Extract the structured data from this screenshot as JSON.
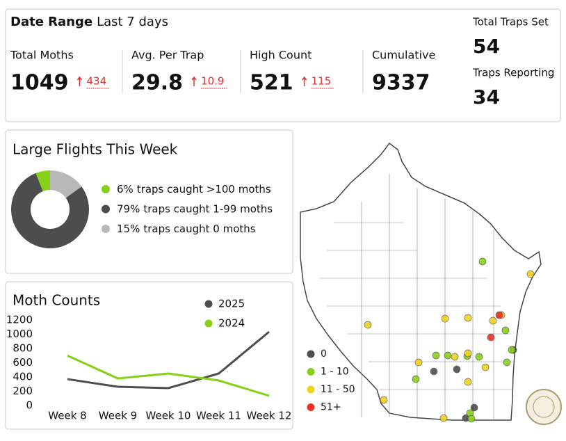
{
  "header": {
    "label": "Date Range",
    "value": "Last 7 days"
  },
  "kpis": [
    {
      "label": "Total Moths",
      "value": 1049,
      "change": 434
    },
    {
      "label": "Avg. Per Trap",
      "value": 29.8,
      "change": 10.9
    },
    {
      "label": "High Count",
      "value": 521,
      "change": 115
    },
    {
      "label": "Cumulative",
      "value": 9337
    }
  ],
  "totals": [
    {
      "label": "Total Traps Set",
      "value": 54
    },
    {
      "label": "Traps Reporting",
      "value": 34
    }
  ],
  "chart_data": [
    {
      "type": "pie",
      "title": "Large Flights This Week",
      "categories": [
        "traps caught >100 moths",
        "traps caught 1-99 moths",
        "traps caught 0 moths"
      ],
      "values": [
        6,
        79,
        15
      ],
      "value_labels": [
        "6%",
        "79%",
        "15%"
      ],
      "colors": [
        "#86d118",
        "#4d4d4d",
        "#b8b8b8"
      ]
    },
    {
      "type": "line",
      "title": "Moth Counts",
      "categories": [
        "Week 8",
        "Week 9",
        "Week 10",
        "Week 11",
        "Week 12"
      ],
      "series": [
        {
          "name": "2025",
          "color": "#4d4d4d",
          "values": [
            370,
            263,
            244,
            449,
            1034
          ]
        },
        {
          "name": "2024",
          "color": "#86d118",
          "values": [
            700,
            380,
            449,
            351,
            137
          ]
        }
      ],
      "ylim": [
        0,
        1200
      ],
      "yticks": [
        0,
        200,
        400,
        600,
        800,
        1000,
        1200
      ],
      "grid": false
    }
  ],
  "map": {
    "legend": [
      {
        "label": "0",
        "color": "#4d4d4d"
      },
      {
        "label": "1 - 10",
        "color": "#86d118"
      },
      {
        "label": "11 - 50",
        "color": "#f2d21b"
      },
      {
        "label": "51+",
        "color": "#ee3124"
      }
    ]
  }
}
